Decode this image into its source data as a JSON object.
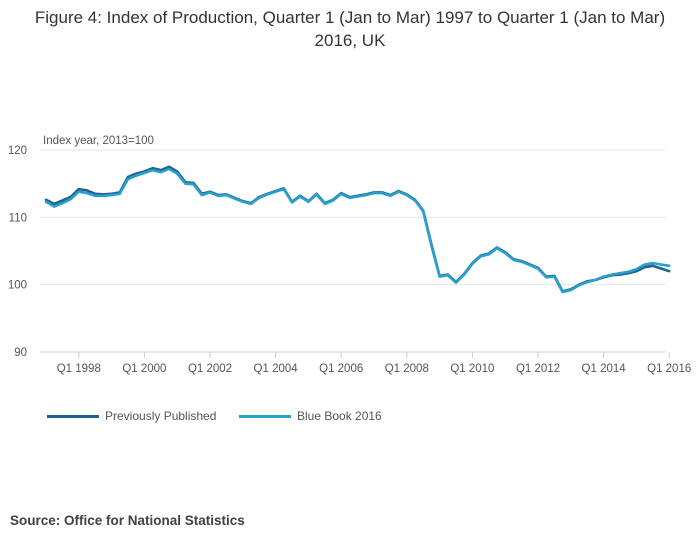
{
  "title": "Figure 4: Index of Production, Quarter 1 (Jan to Mar) 1997 to Quarter 1 (Jan to Mar) 2016, UK",
  "source": "Source: Office for National Statistics",
  "colors": {
    "previous": "#206095",
    "bluebook": "#27a0cc",
    "grid": "#e6e6e6",
    "text": "#555555"
  },
  "chart_data": {
    "type": "line",
    "title": "Figure 4: Index of Production, Quarter 1 (Jan to Mar) 1997 to Quarter 1 (Jan to Mar) 2016, UK",
    "ylabel": "Index year, 2013=100",
    "xlabel": "",
    "ylim": [
      90,
      120
    ],
    "yticks": [
      90,
      100,
      110,
      120
    ],
    "xtick_labels": [
      "Q1 1998",
      "Q1 2000",
      "Q1 2002",
      "Q1 2004",
      "Q1 2006",
      "Q1 2008",
      "Q1 2010",
      "Q1 2012",
      "Q1 2014",
      "Q1 2016"
    ],
    "xtick_index": [
      4,
      12,
      20,
      28,
      36,
      44,
      52,
      60,
      68,
      76
    ],
    "legend": "bottom",
    "series": [
      {
        "name": "Previously Published",
        "values": [
          112.6,
          112.0,
          112.5,
          113.0,
          114.2,
          114.0,
          113.5,
          113.4,
          113.5,
          113.7,
          116.0,
          116.5,
          116.8,
          117.3,
          117.0,
          117.5,
          116.8,
          115.2,
          115.1,
          113.5,
          113.8,
          113.3,
          113.4,
          112.9,
          112.4,
          112.1,
          113.0,
          113.5,
          113.9,
          114.3,
          112.3,
          113.2,
          112.4,
          113.5,
          112.1,
          112.6,
          113.6,
          113.0,
          113.2,
          113.4,
          113.7,
          113.7,
          113.3,
          113.9,
          113.4,
          112.6,
          111.0,
          106.0,
          101.3,
          101.5,
          100.4,
          101.6,
          103.2,
          104.3,
          104.6,
          105.5,
          104.8,
          103.8,
          103.5,
          103.0,
          102.5,
          101.2,
          101.3,
          99.0,
          99.3,
          100.0,
          100.5,
          100.7,
          101.1,
          101.4,
          101.5,
          101.7,
          102.0,
          102.6,
          102.8,
          102.4,
          102.0
        ]
      },
      {
        "name": "Blue Book 2016",
        "values": [
          112.3,
          111.6,
          112.1,
          112.7,
          113.8,
          113.6,
          113.2,
          113.2,
          113.3,
          113.5,
          115.7,
          116.2,
          116.6,
          117.0,
          116.7,
          117.2,
          116.5,
          115.0,
          114.9,
          113.3,
          113.7,
          113.2,
          113.3,
          112.8,
          112.3,
          112.0,
          112.9,
          113.4,
          113.8,
          114.2,
          112.2,
          113.1,
          112.3,
          113.4,
          112.0,
          112.5,
          113.5,
          112.9,
          113.1,
          113.3,
          113.6,
          113.6,
          113.2,
          113.8,
          113.3,
          112.5,
          110.9,
          105.8,
          101.2,
          101.4,
          100.3,
          101.5,
          103.1,
          104.2,
          104.5,
          105.4,
          104.7,
          103.7,
          103.4,
          102.9,
          102.4,
          101.1,
          101.2,
          98.9,
          99.2,
          99.9,
          100.4,
          100.7,
          101.2,
          101.5,
          101.7,
          101.9,
          102.3,
          103.0,
          103.2,
          103.0,
          102.8
        ]
      }
    ]
  }
}
